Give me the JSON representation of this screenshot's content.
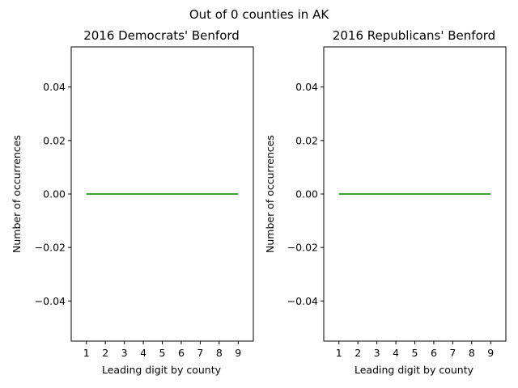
{
  "figure": {
    "suptitle": "Out of 0 counties in AK"
  },
  "chart_data": [
    {
      "type": "line",
      "title": "2016 Democrats' Benford",
      "xlabel": "Leading digit by county",
      "ylabel": "Number of occurrences",
      "x": [
        1,
        2,
        3,
        4,
        5,
        6,
        7,
        8,
        9
      ],
      "x_tick_labels": [
        "1",
        "2",
        "3",
        "4",
        "5",
        "6",
        "7",
        "8",
        "9"
      ],
      "series": [
        {
          "values": [
            0,
            0,
            0,
            0,
            0,
            0,
            0,
            0,
            0
          ],
          "color": "#008000"
        }
      ],
      "xlim": [
        0.2,
        9.8
      ],
      "ylim": [
        -0.055,
        0.055
      ],
      "y_ticks": [
        -0.04,
        -0.02,
        0.0,
        0.02,
        0.04
      ],
      "y_tick_labels": [
        "−0.04",
        "−0.02",
        "0.00",
        "0.02",
        "0.04"
      ],
      "grid": false
    },
    {
      "type": "line",
      "title": "2016 Republicans' Benford",
      "xlabel": "Leading digit by county",
      "ylabel": "Number of occurrences",
      "x": [
        1,
        2,
        3,
        4,
        5,
        6,
        7,
        8,
        9
      ],
      "x_tick_labels": [
        "1",
        "2",
        "3",
        "4",
        "5",
        "6",
        "7",
        "8",
        "9"
      ],
      "series": [
        {
          "values": [
            0,
            0,
            0,
            0,
            0,
            0,
            0,
            0,
            0
          ],
          "color": "#008000"
        }
      ],
      "xlim": [
        0.2,
        9.8
      ],
      "ylim": [
        -0.055,
        0.055
      ],
      "y_ticks": [
        -0.04,
        -0.02,
        0.0,
        0.02,
        0.04
      ],
      "y_tick_labels": [
        "−0.04",
        "−0.02",
        "0.00",
        "0.02",
        "0.04"
      ],
      "grid": false
    }
  ]
}
